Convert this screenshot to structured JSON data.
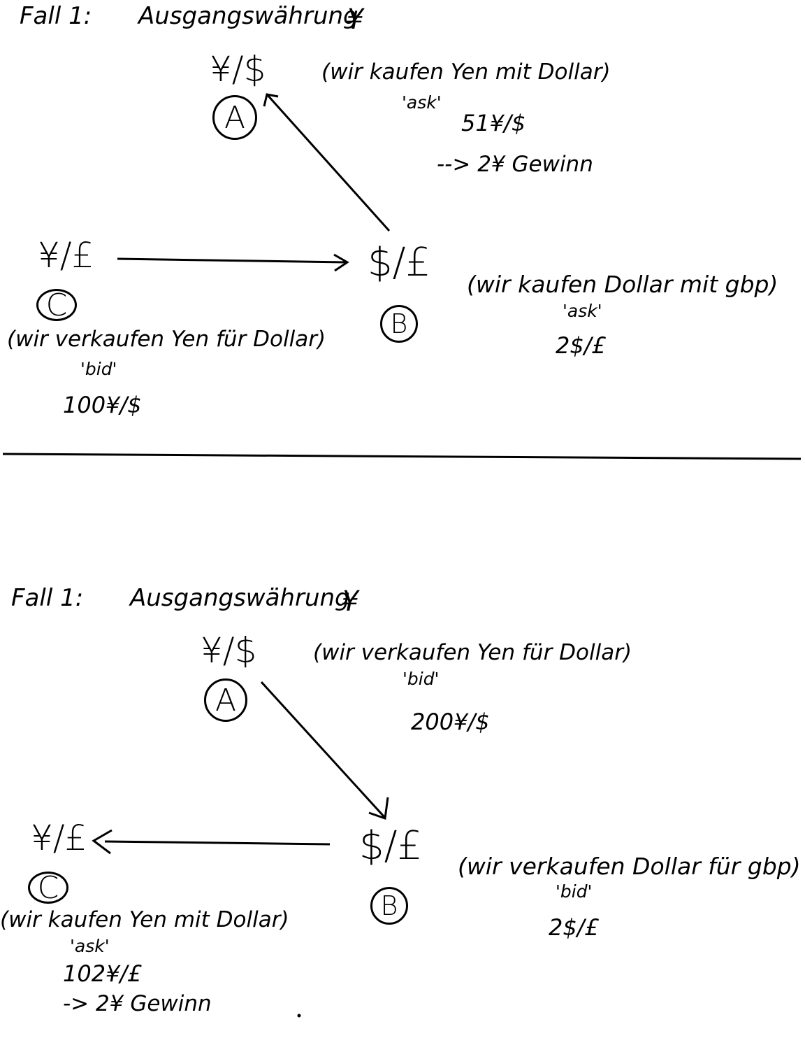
{
  "case1": {
    "title": "Fall 1:",
    "start_currency_label": "Ausgangswährung",
    "start_currency": "¥",
    "node_a": {
      "pair": "¥/$",
      "letter": "A",
      "note": "(wir kaufen Yen mit Dollar)",
      "side": "'ask'",
      "rate": "51¥/$",
      "profit": "--> 2¥ Gewinn"
    },
    "node_b": {
      "pair": "$/£",
      "letter": "B",
      "note": "(wir kaufen Dollar mit gbp)",
      "side": "'ask'",
      "rate": "2$/£"
    },
    "node_c": {
      "pair": "¥/£",
      "letter": "C",
      "note": "(wir verkaufen Yen für Dollar)",
      "side": "'bid'",
      "rate": "100¥/$"
    }
  },
  "case2": {
    "title": "Fall 1:",
    "start_currency_label": "Ausgangswährung",
    "start_currency": "¥",
    "node_a": {
      "pair": "¥/$",
      "letter": "A",
      "note": "(wir verkaufen Yen für Dollar)",
      "side": "'bid'",
      "rate": "200¥/$"
    },
    "node_b": {
      "pair": "$/£",
      "letter": "B",
      "note": "(wir verkaufen Dollar für gbp)",
      "side": "'bid'",
      "rate": "2$/£"
    },
    "node_c": {
      "pair": "¥/£",
      "letter": "C",
      "note": "(wir kaufen Yen mit Dollar)",
      "side": "'ask'",
      "rate": "102¥/£",
      "profit": "-> 2¥ Gewinn"
    }
  }
}
